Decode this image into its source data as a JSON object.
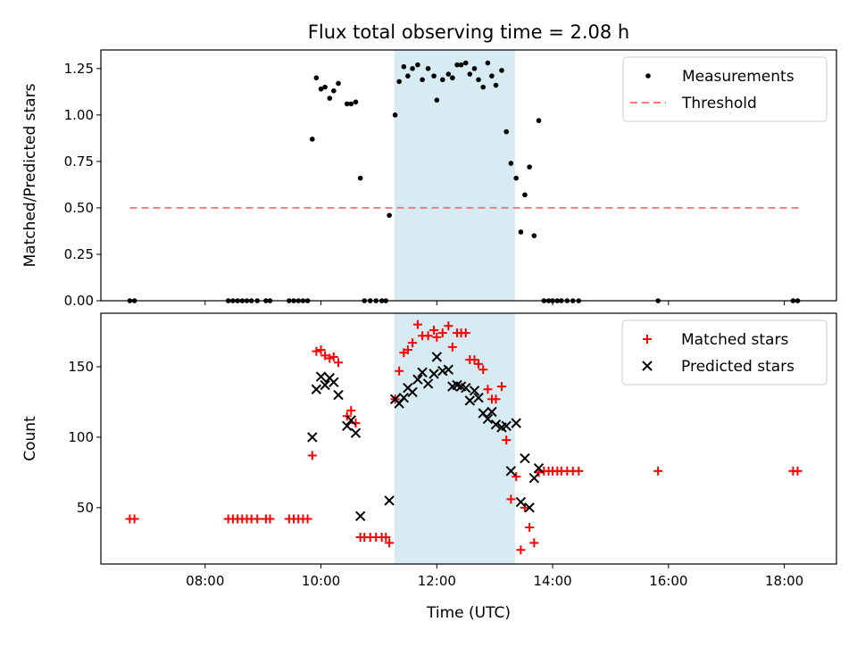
{
  "title": "Flux total observing time = 2.08 h",
  "colors": {
    "highlight": "#add8e6",
    "measurement": "#000000",
    "threshold": "#ff7777",
    "matched": "#ff0000",
    "predicted": "#000000"
  },
  "chart_data": [
    {
      "type": "scatter",
      "ylabel": "Matched/Predicted stars",
      "xlim": [
        6.2,
        18.9
      ],
      "ylim": [
        0,
        1.35
      ],
      "yticks": [
        0,
        0.25,
        0.5,
        0.75,
        1.0,
        1.25
      ],
      "ytick_labels": [
        "0.00",
        "0.25",
        "0.50",
        "0.75",
        "1.00",
        "1.25"
      ],
      "highlight_span": [
        11.27,
        13.35
      ],
      "legend_position": "top-right",
      "series": [
        {
          "name": "Measurements",
          "marker": "dot",
          "points": [
            [
              6.7,
              0
            ],
            [
              6.78,
              0
            ],
            [
              8.4,
              0
            ],
            [
              8.48,
              0
            ],
            [
              8.56,
              0
            ],
            [
              8.64,
              0
            ],
            [
              8.72,
              0
            ],
            [
              8.8,
              0
            ],
            [
              8.9,
              0
            ],
            [
              9.05,
              0
            ],
            [
              9.12,
              0
            ],
            [
              9.45,
              0
            ],
            [
              9.53,
              0
            ],
            [
              9.61,
              0
            ],
            [
              9.69,
              0
            ],
            [
              9.77,
              0
            ],
            [
              9.85,
              0.87
            ],
            [
              9.92,
              1.2
            ],
            [
              10.0,
              1.14
            ],
            [
              10.07,
              1.15
            ],
            [
              10.15,
              1.09
            ],
            [
              10.22,
              1.13
            ],
            [
              10.3,
              1.17
            ],
            [
              10.45,
              1.06
            ],
            [
              10.52,
              1.06
            ],
            [
              10.6,
              1.07
            ],
            [
              10.68,
              0.66
            ],
            [
              10.75,
              0
            ],
            [
              10.85,
              0
            ],
            [
              10.95,
              0
            ],
            [
              11.05,
              0
            ],
            [
              11.12,
              0
            ],
            [
              11.18,
              0.46
            ],
            [
              11.28,
              1.0
            ],
            [
              11.35,
              1.18
            ],
            [
              11.43,
              1.26
            ],
            [
              11.5,
              1.21
            ],
            [
              11.58,
              1.25
            ],
            [
              11.67,
              1.27
            ],
            [
              11.75,
              1.19
            ],
            [
              11.85,
              1.25
            ],
            [
              11.95,
              1.21
            ],
            [
              12.0,
              1.08
            ],
            [
              12.1,
              1.19
            ],
            [
              12.2,
              1.22
            ],
            [
              12.27,
              1.2
            ],
            [
              12.35,
              1.27
            ],
            [
              12.42,
              1.27
            ],
            [
              12.5,
              1.28
            ],
            [
              12.57,
              1.22
            ],
            [
              12.65,
              1.25
            ],
            [
              12.72,
              1.19
            ],
            [
              12.8,
              1.15
            ],
            [
              12.88,
              1.28
            ],
            [
              12.95,
              1.21
            ],
            [
              13.02,
              1.16
            ],
            [
              13.12,
              1.24
            ],
            [
              13.2,
              0.91
            ],
            [
              13.28,
              0.74
            ],
            [
              13.37,
              0.66
            ],
            [
              13.45,
              0.37
            ],
            [
              13.52,
              0.57
            ],
            [
              13.6,
              0.72
            ],
            [
              13.68,
              0.35
            ],
            [
              13.76,
              0.97
            ],
            [
              13.85,
              0
            ],
            [
              13.93,
              0
            ],
            [
              14.0,
              0
            ],
            [
              14.08,
              0
            ],
            [
              14.15,
              0
            ],
            [
              14.25,
              0
            ],
            [
              14.35,
              0
            ],
            [
              14.45,
              0
            ],
            [
              15.82,
              0
            ],
            [
              18.15,
              0
            ],
            [
              18.23,
              0
            ]
          ]
        },
        {
          "name": "Threshold",
          "marker": "dashed-line",
          "points": [
            [
              6.7,
              0.5
            ],
            [
              18.3,
              0.5
            ]
          ]
        }
      ]
    },
    {
      "type": "scatter",
      "ylabel": "Count",
      "xlabel": "Time (UTC)",
      "xlim": [
        6.2,
        18.9
      ],
      "ylim": [
        10,
        188
      ],
      "yticks": [
        50,
        100,
        150
      ],
      "ytick_labels": [
        "50",
        "100",
        "150"
      ],
      "xticks": [
        8,
        10,
        12,
        14,
        16,
        18
      ],
      "xtick_labels": [
        "08:00",
        "10:00",
        "12:00",
        "14:00",
        "16:00",
        "18:00"
      ],
      "highlight_span": [
        11.27,
        13.35
      ],
      "legend_position": "top-right",
      "series": [
        {
          "name": "Matched stars",
          "marker": "plus",
          "points": [
            [
              6.7,
              42
            ],
            [
              6.78,
              42
            ],
            [
              8.4,
              42
            ],
            [
              8.48,
              42
            ],
            [
              8.56,
              42
            ],
            [
              8.64,
              42
            ],
            [
              8.72,
              42
            ],
            [
              8.8,
              42
            ],
            [
              8.9,
              42
            ],
            [
              9.05,
              42
            ],
            [
              9.12,
              42
            ],
            [
              9.45,
              42
            ],
            [
              9.53,
              42
            ],
            [
              9.61,
              42
            ],
            [
              9.69,
              42
            ],
            [
              9.77,
              42
            ],
            [
              9.85,
              87
            ],
            [
              9.92,
              161
            ],
            [
              10.0,
              162
            ],
            [
              10.07,
              158
            ],
            [
              10.15,
              156
            ],
            [
              10.22,
              157
            ],
            [
              10.3,
              153
            ],
            [
              10.45,
              115
            ],
            [
              10.52,
              119
            ],
            [
              10.6,
              110
            ],
            [
              10.68,
              29
            ],
            [
              10.75,
              29
            ],
            [
              10.85,
              29
            ],
            [
              10.95,
              29
            ],
            [
              11.05,
              29
            ],
            [
              11.12,
              29
            ],
            [
              11.18,
              25
            ],
            [
              11.28,
              127
            ],
            [
              11.35,
              147
            ],
            [
              11.43,
              160
            ],
            [
              11.5,
              162
            ],
            [
              11.58,
              167
            ],
            [
              11.67,
              180
            ],
            [
              11.75,
              172
            ],
            [
              11.85,
              172
            ],
            [
              11.95,
              176
            ],
            [
              12.0,
              171
            ],
            [
              12.1,
              174
            ],
            [
              12.2,
              179
            ],
            [
              12.27,
              164
            ],
            [
              12.35,
              174
            ],
            [
              12.42,
              174
            ],
            [
              12.5,
              174
            ],
            [
              12.57,
              155
            ],
            [
              12.65,
              155
            ],
            [
              12.72,
              152
            ],
            [
              12.8,
              148
            ],
            [
              12.88,
              134
            ],
            [
              12.95,
              127
            ],
            [
              13.02,
              127
            ],
            [
              13.12,
              136
            ],
            [
              13.2,
              98
            ],
            [
              13.28,
              56
            ],
            [
              13.37,
              72
            ],
            [
              13.45,
              20
            ],
            [
              13.52,
              50
            ],
            [
              13.6,
              36
            ],
            [
              13.68,
              25
            ],
            [
              13.76,
              75
            ],
            [
              13.85,
              76
            ],
            [
              13.93,
              76
            ],
            [
              14.0,
              76
            ],
            [
              14.08,
              76
            ],
            [
              14.15,
              76
            ],
            [
              14.25,
              76
            ],
            [
              14.35,
              76
            ],
            [
              14.45,
              76
            ],
            [
              15.82,
              76
            ],
            [
              18.15,
              76
            ],
            [
              18.23,
              76
            ]
          ]
        },
        {
          "name": "Predicted stars",
          "marker": "x",
          "points": [
            [
              9.85,
              100
            ],
            [
              9.92,
              134
            ],
            [
              10.0,
              143
            ],
            [
              10.07,
              137
            ],
            [
              10.15,
              142
            ],
            [
              10.22,
              139
            ],
            [
              10.3,
              130
            ],
            [
              10.45,
              108
            ],
            [
              10.52,
              112
            ],
            [
              10.6,
              103
            ],
            [
              10.68,
              44
            ],
            [
              11.18,
              55
            ],
            [
              11.28,
              127
            ],
            [
              11.35,
              124
            ],
            [
              11.43,
              128
            ],
            [
              11.5,
              135
            ],
            [
              11.58,
              132
            ],
            [
              11.67,
              141
            ],
            [
              11.75,
              146
            ],
            [
              11.85,
              138
            ],
            [
              11.95,
              145
            ],
            [
              12.0,
              157
            ],
            [
              12.1,
              147
            ],
            [
              12.2,
              148
            ],
            [
              12.27,
              136
            ],
            [
              12.35,
              137
            ],
            [
              12.42,
              136
            ],
            [
              12.5,
              135
            ],
            [
              12.57,
              126
            ],
            [
              12.65,
              133
            ],
            [
              12.72,
              128
            ],
            [
              12.8,
              117
            ],
            [
              12.88,
              113
            ],
            [
              12.95,
              118
            ],
            [
              13.02,
              109
            ],
            [
              13.12,
              107
            ],
            [
              13.2,
              108
            ],
            [
              13.28,
              76
            ],
            [
              13.37,
              110
            ],
            [
              13.45,
              54
            ],
            [
              13.52,
              85
            ],
            [
              13.6,
              50
            ],
            [
              13.68,
              71
            ],
            [
              13.76,
              78
            ]
          ]
        }
      ]
    }
  ]
}
